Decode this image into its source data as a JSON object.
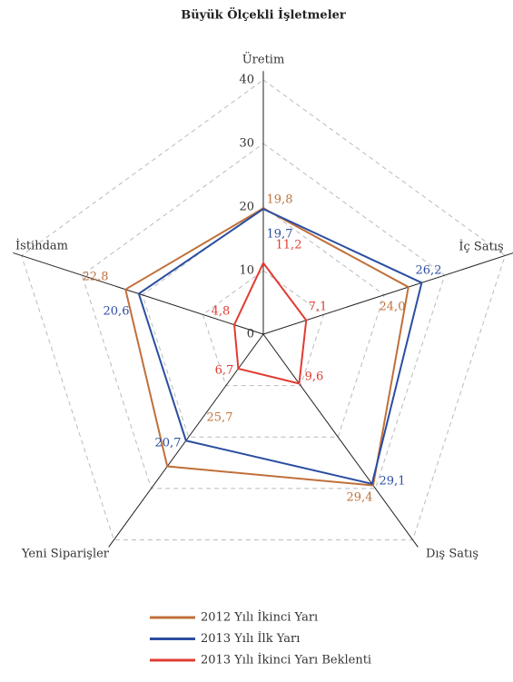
{
  "chart_data": {
    "type": "radar",
    "title": "Büyük Ölçekli İşletmeler",
    "categories": [
      "Üretim",
      "İç Satış",
      "Dış Satış",
      "Yeni Siparişler",
      "İstihdam"
    ],
    "ylim": [
      0,
      40
    ],
    "yticks": [
      0,
      10,
      20,
      30,
      40
    ],
    "grid": true,
    "series": [
      {
        "name": "2012 Yılı İkinci Yarı",
        "color": "#c0703a",
        "values": [
          19.8,
          24.0,
          29.4,
          25.7,
          22.8
        ],
        "value_labels": [
          "19,8",
          "24,0",
          "29,4",
          "25,7",
          "22,8"
        ]
      },
      {
        "name": "2013 Yılı İlk Yarı",
        "color": "#2b4ea0",
        "values": [
          19.7,
          26.2,
          29.1,
          20.7,
          20.6
        ],
        "value_labels": [
          "19,7",
          "26,2",
          "29,1",
          "20,7",
          "20,6"
        ]
      },
      {
        "name": "2013 Yılı İkinci Yarı Beklenti",
        "color": "#e03c31",
        "values": [
          11.2,
          7.1,
          9.6,
          6.7,
          4.8
        ],
        "value_labels": [
          "11,2",
          "7,1",
          "9,6",
          "6,7",
          "4,8"
        ]
      }
    ]
  }
}
